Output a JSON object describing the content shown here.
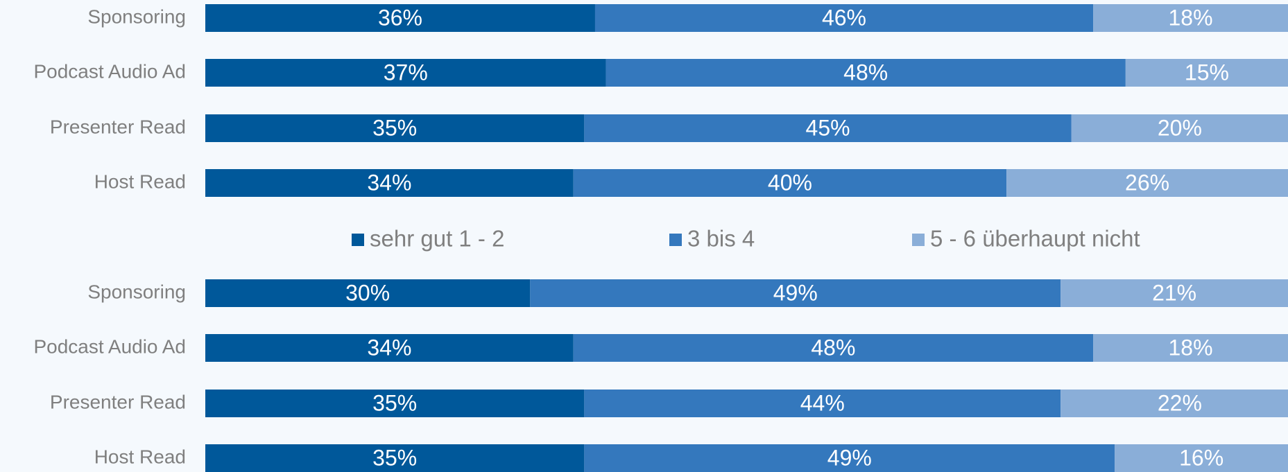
{
  "chart_data": [
    {
      "type": "stacked-bar",
      "orientation": "horizontal",
      "categories": [
        "Sponsoring",
        "Podcast Audio Ad",
        "Presenter Read",
        "Host Read"
      ],
      "xlim": [
        0,
        100
      ],
      "series": [
        {
          "name": "sehr gut 1 - 2",
          "color": "#00589a",
          "values": [
            36,
            37,
            35,
            34
          ],
          "value_labels": [
            "36%",
            "37%",
            "35%",
            "34%"
          ]
        },
        {
          "name": "3 bis 4",
          "color": "#3478bd",
          "values": [
            46,
            48,
            45,
            40
          ],
          "value_labels": [
            "46%",
            "48%",
            "45%",
            "40%"
          ]
        },
        {
          "name": "5 - 6 überhaupt nicht",
          "color": "#8aaed8",
          "values": [
            18,
            15,
            20,
            26
          ],
          "value_labels": [
            "18%",
            "15%",
            "20%",
            "26%"
          ]
        }
      ]
    },
    {
      "type": "stacked-bar",
      "orientation": "horizontal",
      "categories": [
        "Sponsoring",
        "Podcast Audio Ad",
        "Presenter Read",
        "Host Read"
      ],
      "xlim": [
        0,
        100
      ],
      "series": [
        {
          "color": "#00589a",
          "values": [
            30,
            34,
            35,
            35
          ],
          "value_labels": [
            "30%",
            "34%",
            "35%",
            "35%"
          ]
        },
        {
          "color": "#3478bd",
          "values": [
            49,
            48,
            44,
            49
          ],
          "value_labels": [
            "49%",
            "48%",
            "44%",
            "49%"
          ]
        },
        {
          "color": "#8aaed8",
          "values": [
            21,
            18,
            22,
            16
          ],
          "value_labels": [
            "21%",
            "18%",
            "22%",
            "16%"
          ]
        }
      ]
    }
  ]
}
